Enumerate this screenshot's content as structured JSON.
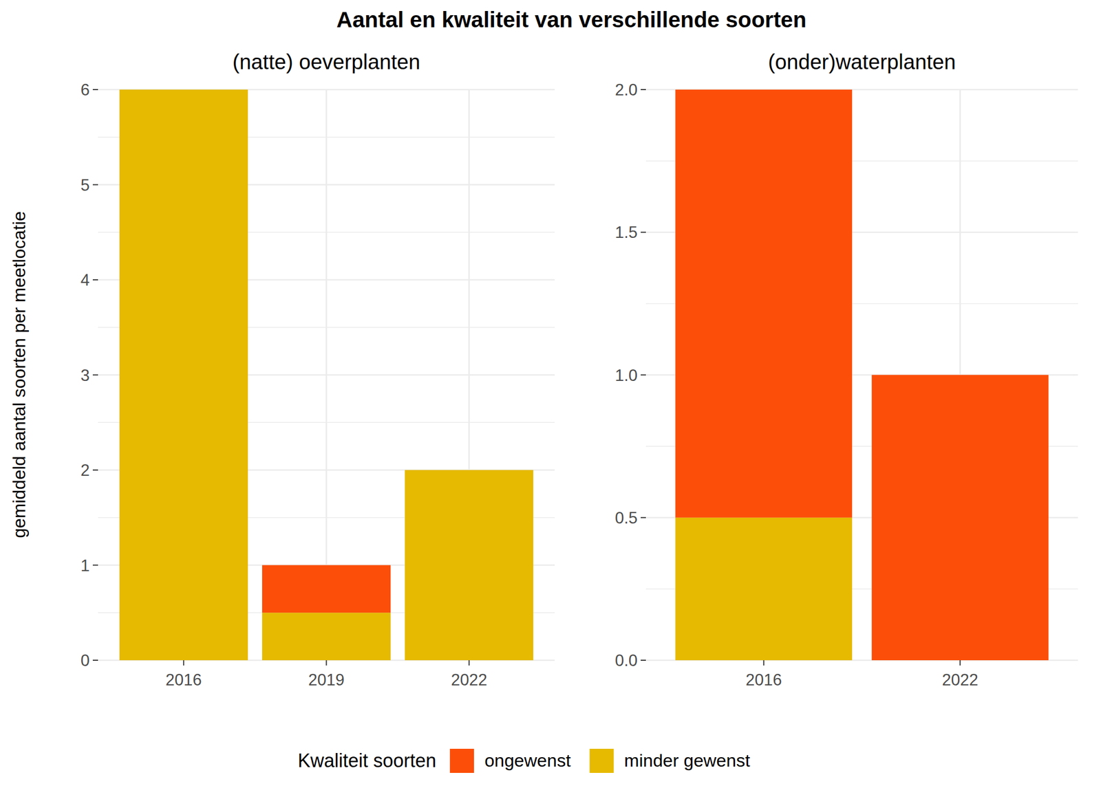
{
  "title": "Aantal en kwaliteit van verschillende soorten",
  "y_label": "gemiddeld aantal soorten per meetlocatie",
  "legend_title": "Kwaliteit soorten",
  "chart_data": [
    {
      "type": "bar",
      "subtitle": "(natte) oeverplanten",
      "stacked": true,
      "grid": true,
      "legend": "bottom",
      "categories": [
        "2016",
        "2019",
        "2022"
      ],
      "series": [
        {
          "name": "ongewenst",
          "color": "#fc4e08",
          "values": [
            0,
            0.5,
            0
          ]
        },
        {
          "name": "minder gewenst",
          "color": "#e6ba00",
          "values": [
            6,
            0.5,
            2
          ]
        }
      ],
      "ylim": [
        0,
        6
      ],
      "yticks": [
        0,
        1,
        2,
        3,
        4,
        5,
        6
      ]
    },
    {
      "type": "bar",
      "subtitle": "(onder)waterplanten",
      "stacked": true,
      "grid": true,
      "legend": "bottom",
      "categories": [
        "2016",
        "2022"
      ],
      "series": [
        {
          "name": "ongewenst",
          "color": "#fc4e08",
          "values": [
            1.5,
            1
          ]
        },
        {
          "name": "minder gewenst",
          "color": "#e6ba00",
          "values": [
            0.5,
            0
          ]
        }
      ],
      "ylim": [
        0,
        2
      ],
      "yticks": [
        {
          "value": 0,
          "label": "0.0"
        },
        0.5,
        {
          "value": 1,
          "label": "1.0"
        },
        1.5,
        {
          "value": 2,
          "label": "2.0"
        }
      ]
    }
  ]
}
